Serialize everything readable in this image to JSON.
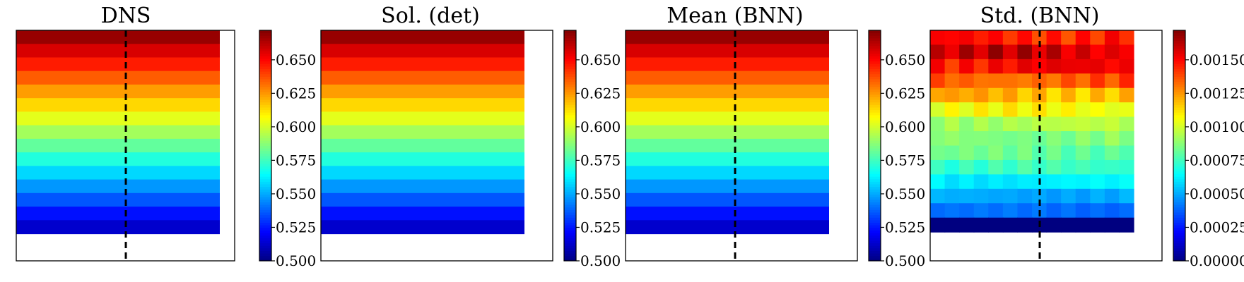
{
  "chart_data": [
    {
      "type": "heatmap",
      "title": "DNS",
      "grid": "off",
      "legend": "colorbar-right",
      "colormap": "jet",
      "vmin": 0.5,
      "vmax": 0.672,
      "colorbar_ticks": [
        "0.500",
        "0.525",
        "0.550",
        "0.575",
        "0.600",
        "0.625",
        "0.650"
      ],
      "band_values": [
        0.668,
        0.657,
        0.646,
        0.635,
        0.624,
        0.614,
        0.603,
        0.592,
        0.581,
        0.57,
        0.558,
        0.547,
        0.536,
        0.524,
        0.513,
        null,
        null
      ],
      "dashed_line": "vertical"
    },
    {
      "type": "heatmap",
      "title": "Sol. (det)",
      "grid": "off",
      "legend": "colorbar-right",
      "colormap": "jet",
      "vmin": 0.5,
      "vmax": 0.672,
      "colorbar_ticks": [
        "0.500",
        "0.525",
        "0.550",
        "0.575",
        "0.600",
        "0.625",
        "0.650"
      ],
      "band_values": [
        0.668,
        0.657,
        0.646,
        0.635,
        0.624,
        0.614,
        0.603,
        0.592,
        0.581,
        0.57,
        0.558,
        0.547,
        0.536,
        0.524,
        0.513,
        null,
        null
      ],
      "dashed_line": "none"
    },
    {
      "type": "heatmap",
      "title": "Mean (BNN)",
      "grid": "off",
      "legend": "colorbar-right",
      "colormap": "jet",
      "vmin": 0.5,
      "vmax": 0.672,
      "colorbar_ticks": [
        "0.500",
        "0.525",
        "0.550",
        "0.575",
        "0.600",
        "0.625",
        "0.650"
      ],
      "band_values": [
        0.668,
        0.657,
        0.646,
        0.635,
        0.624,
        0.614,
        0.603,
        0.592,
        0.581,
        0.57,
        0.558,
        0.547,
        0.536,
        0.524,
        0.513,
        null,
        null
      ],
      "dashed_line": "vertical"
    },
    {
      "type": "heatmap",
      "title": "Std. (BNN)",
      "grid": "off",
      "legend": "colorbar-right",
      "colormap": "jet",
      "vmin": 0.0,
      "vmax": 0.00172,
      "colorbar_ticks": [
        "0.00000",
        "0.00025",
        "0.00050",
        "0.00075",
        "0.00100",
        "0.00125",
        "0.00150"
      ],
      "row_values": [
        0.00147,
        0.00158,
        0.0015,
        0.00135,
        0.0012,
        0.00106,
        0.00094,
        0.00087,
        0.00082,
        0.00074,
        0.00062,
        0.0005,
        0.0004,
        0.0,
        null,
        null
      ],
      "dashed_line": "vertical"
    }
  ]
}
